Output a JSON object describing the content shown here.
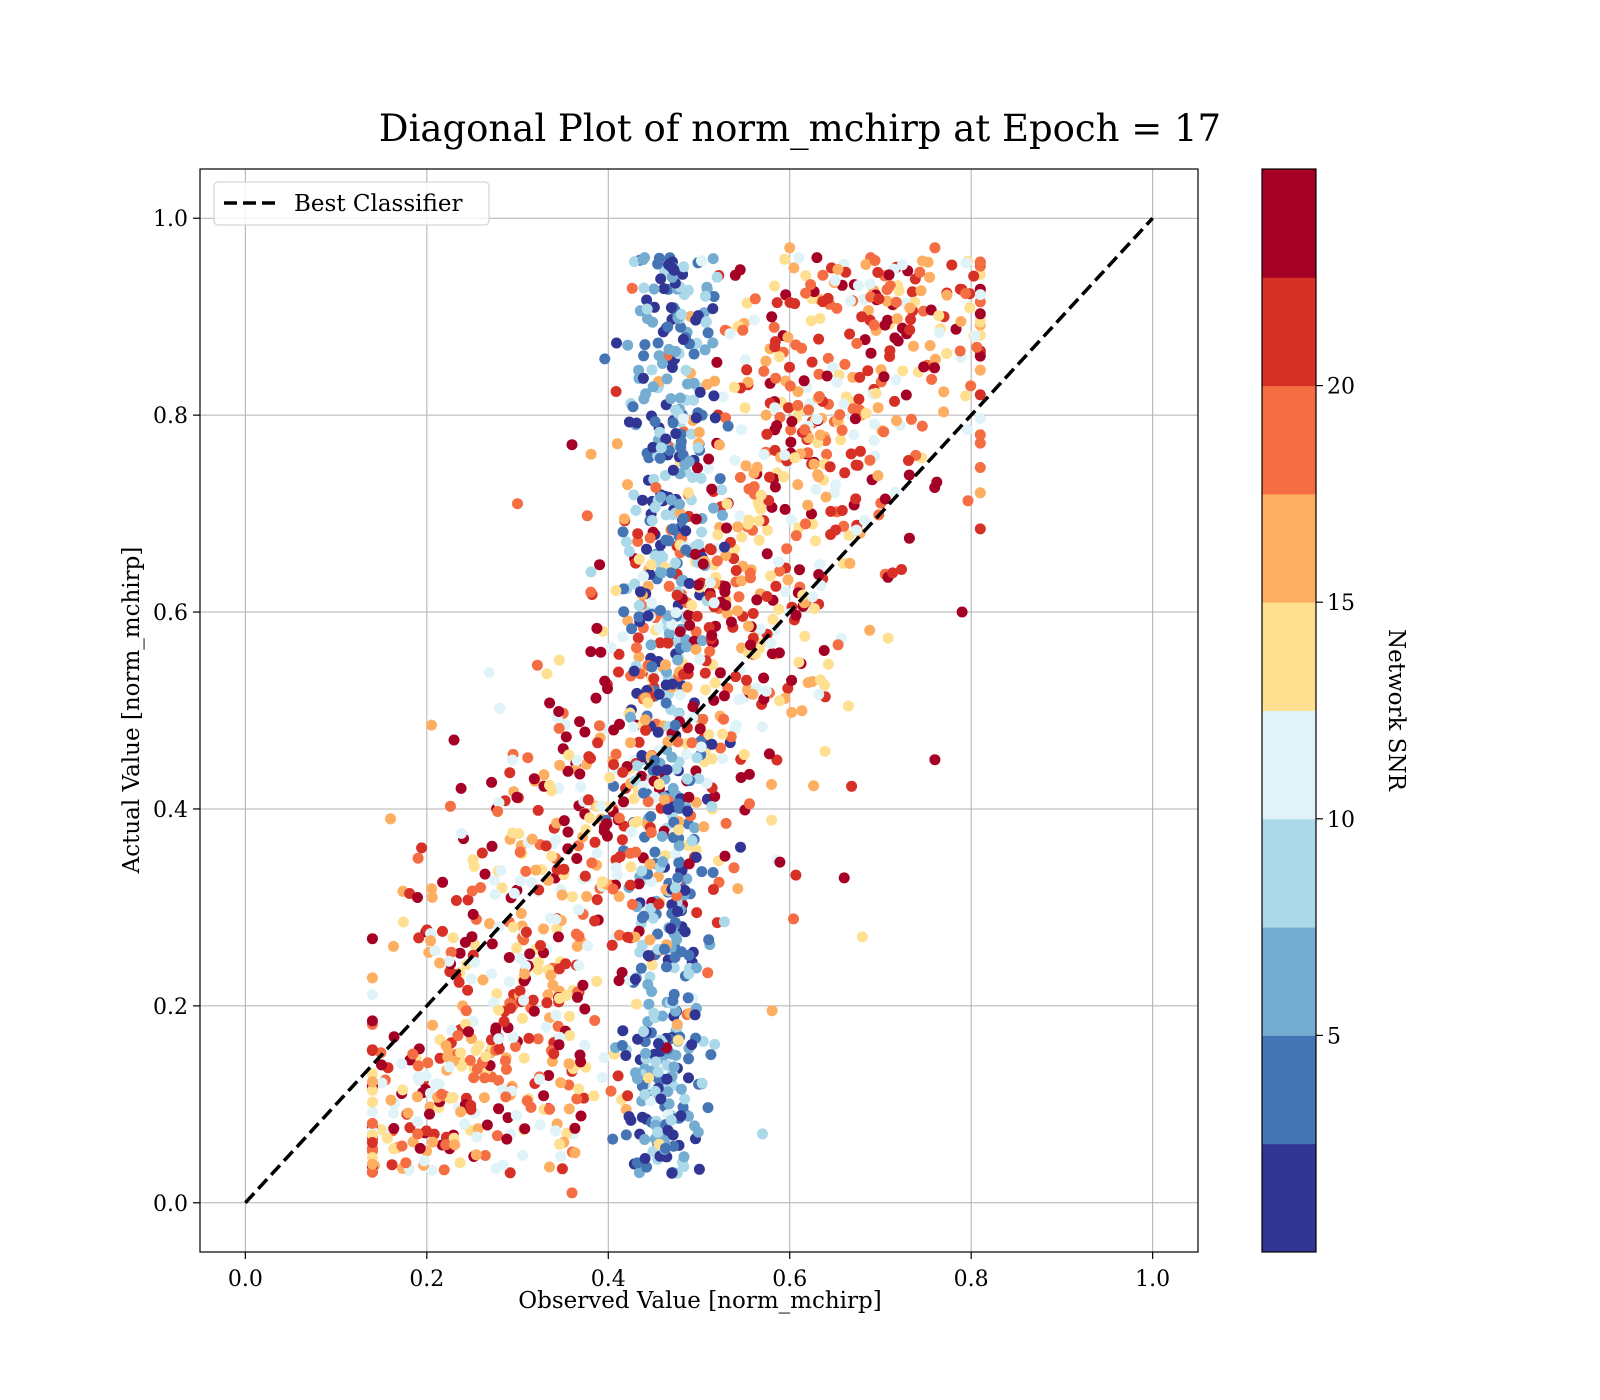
{
  "chart_data": {
    "type": "scatter",
    "title": "Diagonal Plot of norm_mchirp at Epoch = 17",
    "xlabel": "Observed Value [norm_mchirp]",
    "ylabel": "Actual Value [norm_mchirp]",
    "xlim": [
      -0.05,
      1.05
    ],
    "ylim": [
      -0.05,
      1.05
    ],
    "xticks": [
      "0.0",
      "0.2",
      "0.4",
      "0.6",
      "0.8",
      "1.0"
    ],
    "yticks": [
      "0.0",
      "0.2",
      "0.4",
      "0.6",
      "0.8",
      "1.0"
    ],
    "xtick_values": [
      0.0,
      0.2,
      0.4,
      0.6,
      0.8,
      1.0
    ],
    "ytick_values": [
      0.0,
      0.2,
      0.4,
      0.6,
      0.8,
      1.0
    ],
    "grid": true,
    "legend": {
      "placement": "top-left",
      "entries": [
        "Best Classifier"
      ]
    },
    "reference_line": {
      "name": "Best Classifier",
      "x": [
        0.0,
        1.0
      ],
      "y": [
        0.0,
        1.0
      ],
      "style": "dashed",
      "color": "#000000"
    },
    "colorbar": {
      "label": "Network SNR",
      "range": [
        0,
        25
      ],
      "ticks": [
        "5",
        "10",
        "15",
        "20"
      ],
      "tick_values": [
        5,
        10,
        15,
        20
      ],
      "bands": [
        "#313695",
        "#4575b4",
        "#74add1",
        "#abd9e9",
        "#e0f3f8",
        "#fee090",
        "#fdae61",
        "#f46d43",
        "#d73027",
        "#a50026"
      ]
    },
    "point_count_estimate": 2000,
    "sample_points": [
      {
        "x": 0.44,
        "y": 0.96,
        "snr": 5
      },
      {
        "x": 0.47,
        "y": 0.95,
        "snr": 2
      },
      {
        "x": 0.63,
        "y": 0.96,
        "snr": 23
      },
      {
        "x": 0.76,
        "y": 0.97,
        "snr": 18
      },
      {
        "x": 0.6,
        "y": 0.97,
        "snr": 15
      },
      {
        "x": 0.52,
        "y": 0.94,
        "snr": 9
      },
      {
        "x": 0.3,
        "y": 0.71,
        "snr": 19
      },
      {
        "x": 0.36,
        "y": 0.77,
        "snr": 23
      },
      {
        "x": 0.79,
        "y": 0.6,
        "snr": 24
      },
      {
        "x": 0.81,
        "y": 0.78,
        "snr": 18
      },
      {
        "x": 0.76,
        "y": 0.45,
        "snr": 24
      },
      {
        "x": 0.57,
        "y": 0.07,
        "snr": 8
      },
      {
        "x": 0.36,
        "y": 0.01,
        "snr": 19
      },
      {
        "x": 0.47,
        "y": 0.03,
        "snr": 2
      },
      {
        "x": 0.15,
        "y": 0.14,
        "snr": 23
      },
      {
        "x": 0.16,
        "y": 0.39,
        "snr": 17
      },
      {
        "x": 0.19,
        "y": 0.07,
        "snr": 19
      },
      {
        "x": 0.23,
        "y": 0.47,
        "snr": 23
      },
      {
        "x": 0.68,
        "y": 0.27,
        "snr": 14
      },
      {
        "x": 0.66,
        "y": 0.33,
        "snr": 23
      }
    ]
  }
}
